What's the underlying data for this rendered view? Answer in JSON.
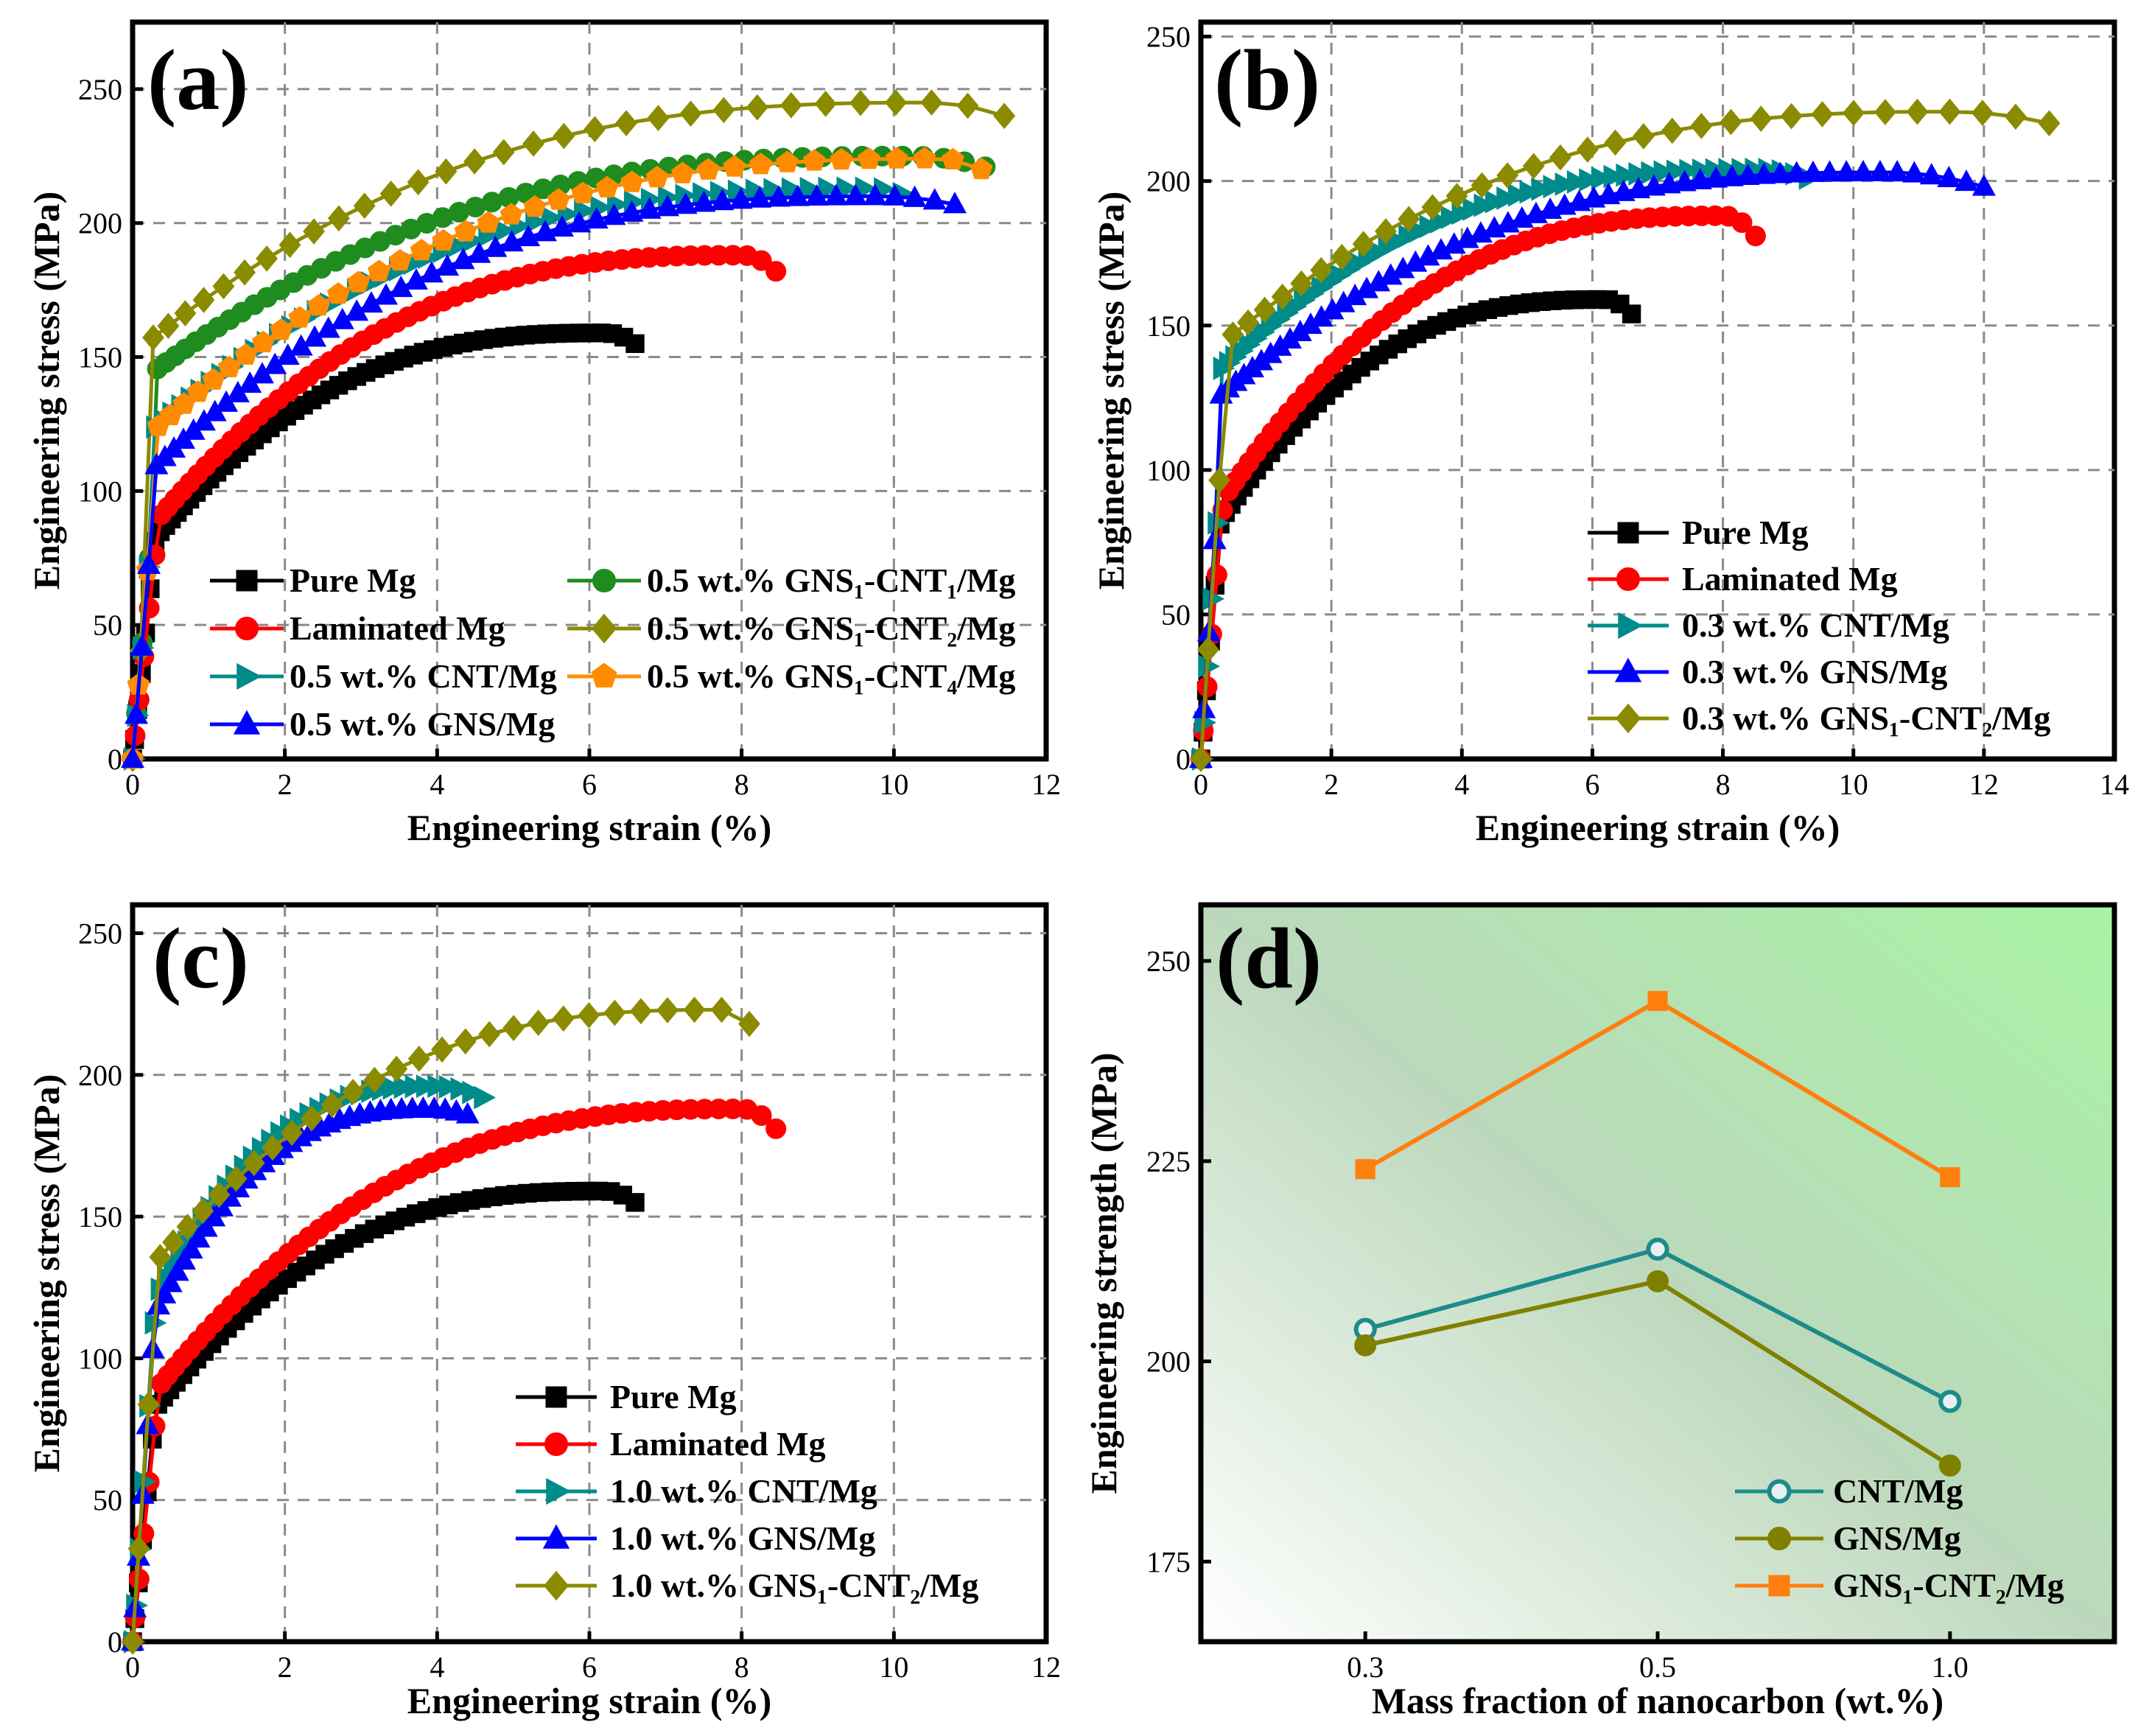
{
  "colors": {
    "pure": "#000000",
    "laminated": "#ff0000",
    "cnt": "#008b8b",
    "gns": "#0000ff",
    "olive": "#8b8b00",
    "green": "#1e8c1e",
    "orange": "#ff8c00",
    "teal_d": "#1d8b8b",
    "olive_d": "#808000",
    "orange_d": "#ff7f0e"
  },
  "chart_data": [
    {
      "id": "a",
      "type": "line",
      "panel_label": "(a)",
      "xlabel": "Engineering strain (%)",
      "ylabel": "Engineering stress (MPa)",
      "xlim": [
        0,
        12
      ],
      "ylim": [
        0,
        275
      ],
      "xticks": [
        "0",
        "2",
        "4",
        "6",
        "8",
        "10",
        "12"
      ],
      "yticks": [
        "0",
        "50",
        "100",
        "150",
        "200",
        "250"
      ],
      "legend_position": "bottom",
      "series": [
        {
          "name": "Pure Mg",
          "marker": "square",
          "color": "pure",
          "n": 60,
          "knee": 0.52,
          "knee_strain": 0.3,
          "slope": 300,
          "end_strain": 6.6,
          "uts": 159,
          "uts_strain": 6.2,
          "fracture": 155
        },
        {
          "name": "0.5 wt.% GNS₁-CNT₁/Mg",
          "marker": "circle",
          "color": "green",
          "n": 55,
          "knee": 0.64,
          "knee_strain": 0.25,
          "slope": 340,
          "end_strain": 11.2,
          "uts": 225,
          "uts_strain": 10.2,
          "fracture": 221
        },
        {
          "name": "Laminated Mg",
          "marker": "circle",
          "color": "laminated",
          "n": 60,
          "knee": 0.48,
          "knee_strain": 0.35,
          "slope": 300,
          "end_strain": 8.45,
          "uts": 188,
          "uts_strain": 8.0,
          "fracture": 182
        },
        {
          "name": "0.5 wt.% GNS₁-CNT₂/Mg",
          "marker": "diamond",
          "color": "olive",
          "n": 32,
          "knee": 0.64,
          "knee_strain": 0.25,
          "slope": 380,
          "end_strain": 11.45,
          "uts": 245,
          "uts_strain": 10.5,
          "fracture": 240
        },
        {
          "name": "0.5 wt.% CNT/Mg",
          "marker": "triangle-right",
          "color": "cnt",
          "n": 55,
          "knee": 0.58,
          "knee_strain": 0.28,
          "slope": 360,
          "end_strain": 10.1,
          "uts": 213,
          "uts_strain": 9.7,
          "fracture": 211
        },
        {
          "name": "0.5 wt.% GNS₁-CNT₄/Mg",
          "marker": "pentagon",
          "color": "orange",
          "n": 40,
          "knee": 0.55,
          "knee_strain": 0.3,
          "slope": 360,
          "end_strain": 11.15,
          "uts": 224,
          "uts_strain": 10.6,
          "fracture": 220
        },
        {
          "name": "0.5 wt.% GNS/Mg",
          "marker": "triangle-up",
          "color": "gns",
          "n": 55,
          "knee": 0.52,
          "knee_strain": 0.3,
          "slope": 340,
          "end_strain": 10.8,
          "uts": 210,
          "uts_strain": 9.8,
          "fracture": 207
        }
      ]
    },
    {
      "id": "b",
      "type": "line",
      "panel_label": "(b)",
      "xlabel": "Engineering strain (%)",
      "ylabel": "Engineering stress (MPa)",
      "xlim": [
        0,
        14
      ],
      "ylim": [
        0,
        255
      ],
      "xticks": [
        "0",
        "2",
        "4",
        "6",
        "8",
        "10",
        "12",
        "14"
      ],
      "yticks": [
        "0",
        "50",
        "100",
        "150",
        "200",
        "250"
      ],
      "legend_position": "bottom-right",
      "series": [
        {
          "name": "Pure Mg",
          "marker": "square",
          "color": "pure",
          "n": 50,
          "knee": 0.52,
          "knee_strain": 0.3,
          "slope": 300,
          "end_strain": 6.6,
          "uts": 159,
          "uts_strain": 6.2,
          "fracture": 154
        },
        {
          "name": "Laminated Mg",
          "marker": "circle",
          "color": "laminated",
          "n": 55,
          "knee": 0.48,
          "knee_strain": 0.35,
          "slope": 300,
          "end_strain": 8.5,
          "uts": 188,
          "uts_strain": 8.0,
          "fracture": 181
        },
        {
          "name": "0.3 wt.% CNT/Mg",
          "marker": "triangle-right",
          "color": "cnt",
          "n": 60,
          "knee": 0.66,
          "knee_strain": 0.3,
          "slope": 340,
          "end_strain": 9.3,
          "uts": 204,
          "uts_strain": 8.6,
          "fracture": 201
        },
        {
          "name": "0.3 wt.% GNS/Mg",
          "marker": "triangle-up",
          "color": "gns",
          "n": 60,
          "knee": 0.62,
          "knee_strain": 0.3,
          "slope": 360,
          "end_strain": 12.0,
          "uts": 203,
          "uts_strain": 10.5,
          "fracture": 198
        },
        {
          "name": "0.3 wt.% GNS₁-CNT₂/Mg",
          "marker": "diamond",
          "color": "olive",
          "n": 34,
          "knee": 0.64,
          "knee_strain": 0.3,
          "slope": 340,
          "end_strain": 13.0,
          "uts": 224,
          "uts_strain": 11.5,
          "fracture": 220
        }
      ]
    },
    {
      "id": "c",
      "type": "line",
      "panel_label": "(c)",
      "xlabel": "Engineering strain (%)",
      "ylabel": "Engineering stress (MPa)",
      "xlim": [
        0,
        12
      ],
      "ylim": [
        0,
        260
      ],
      "xticks": [
        "0",
        "2",
        "4",
        "6",
        "8",
        "10",
        "12"
      ],
      "yticks": [
        "0",
        "50",
        "100",
        "150",
        "200",
        "250"
      ],
      "legend_position": "bottom-right",
      "series": [
        {
          "name": "Pure Mg",
          "marker": "square",
          "color": "pure",
          "n": 55,
          "knee": 0.52,
          "knee_strain": 0.3,
          "slope": 300,
          "end_strain": 6.6,
          "uts": 159,
          "uts_strain": 6.2,
          "fracture": 155
        },
        {
          "name": "Laminated Mg",
          "marker": "circle",
          "color": "laminated",
          "n": 60,
          "knee": 0.48,
          "knee_strain": 0.35,
          "slope": 300,
          "end_strain": 8.45,
          "uts": 188,
          "uts_strain": 8.0,
          "fracture": 181
        },
        {
          "name": "1.0 wt.% CNT/Mg",
          "marker": "triangle-right",
          "color": "cnt",
          "n": 40,
          "knee": 0.62,
          "knee_strain": 0.3,
          "slope": 420,
          "end_strain": 4.6,
          "uts": 196,
          "uts_strain": 4.0,
          "fracture": 192
        },
        {
          "name": "1.0 wt.% GNS/Mg",
          "marker": "triangle-up",
          "color": "gns",
          "n": 40,
          "knee": 0.62,
          "knee_strain": 0.3,
          "slope": 420,
          "end_strain": 4.4,
          "uts": 188,
          "uts_strain": 3.9,
          "fracture": 186
        },
        {
          "name": "1.0 wt.% GNS₁-CNT₂/Mg",
          "marker": "diamond",
          "color": "olive",
          "n": 30,
          "knee": 0.6,
          "knee_strain": 0.3,
          "slope": 400,
          "end_strain": 8.1,
          "uts": 223,
          "uts_strain": 7.7,
          "fracture": 218
        }
      ]
    },
    {
      "id": "d",
      "type": "line",
      "panel_label": "(d)",
      "xlabel": "Mass fraction of nanocarbon (wt.%)",
      "ylabel": "Engineering strength (MPa)",
      "categories": [
        "0.3",
        "0.5",
        "1.0"
      ],
      "ylim": [
        165,
        257
      ],
      "yticks": [
        "175",
        "200",
        "225",
        "250"
      ],
      "ytick_values": [
        175,
        200,
        225,
        250
      ],
      "legend_position": "bottom-right",
      "background": "green gradient",
      "series": [
        {
          "name": "CNT/Mg",
          "marker": "open-circle",
          "color": "teal_d",
          "values": [
            204,
            214,
            195
          ]
        },
        {
          "name": "GNS/Mg",
          "marker": "circle",
          "color": "olive_d",
          "values": [
            202,
            210,
            187
          ]
        },
        {
          "name": "GNS₁-CNT₂/Mg",
          "marker": "square",
          "color": "orange_d",
          "values": [
            224,
            245,
            223
          ]
        }
      ]
    }
  ]
}
